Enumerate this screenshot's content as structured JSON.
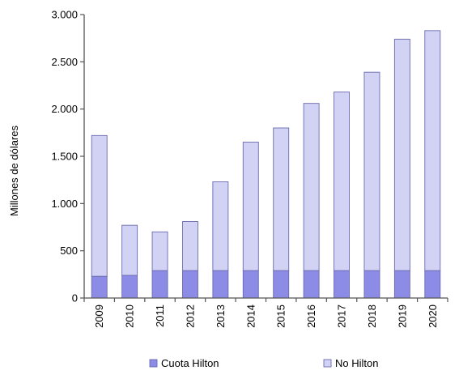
{
  "chart_data": {
    "type": "bar",
    "stacked": true,
    "categories": [
      "2009",
      "2010",
      "2011",
      "2012",
      "2013",
      "2014",
      "2015",
      "2016",
      "2017",
      "2018",
      "2019",
      "2020"
    ],
    "series": [
      {
        "name": "Cuota Hilton",
        "values": [
          230,
          240,
          290,
          290,
          290,
          290,
          290,
          290,
          290,
          290,
          290,
          290
        ]
      },
      {
        "name": "No Hilton",
        "values": [
          1490,
          530,
          410,
          520,
          940,
          1360,
          1510,
          1770,
          1890,
          2100,
          2450,
          2540
        ]
      }
    ],
    "title": "",
    "xlabel": "",
    "ylabel": "Millones de dólares",
    "ylim": [
      0,
      3000
    ],
    "yticks": [
      0,
      500,
      1000,
      1500,
      2000,
      2500,
      3000
    ],
    "ytick_labels": [
      "0",
      "500",
      "1.000",
      "1.500",
      "2.000",
      "2.500",
      "3.000"
    ],
    "grid": false,
    "legend": "bottom",
    "colors": {
      "Cuota Hilton": "#8c8ce6",
      "No Hilton": "#d2d2f5",
      "bar_outline": "#6a6ab0",
      "axis": "#555555"
    }
  }
}
